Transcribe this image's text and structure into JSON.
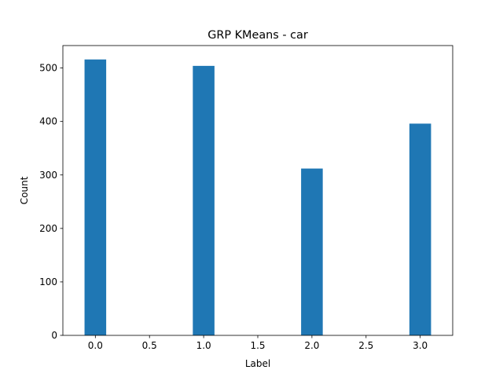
{
  "chart_data": {
    "type": "bar",
    "title": "GRP KMeans - car",
    "xlabel": "Label",
    "ylabel": "Count",
    "x": [
      0.0,
      1.0,
      2.0,
      3.0
    ],
    "values": [
      516,
      504,
      312,
      396
    ],
    "bar_color": "#1f77b4",
    "xlim": [
      -0.3,
      3.3
    ],
    "ylim": [
      0,
      542
    ],
    "xticks": [
      0.0,
      0.5,
      1.0,
      1.5,
      2.0,
      2.5,
      3.0
    ],
    "xtick_labels": [
      "0.0",
      "0.5",
      "1.0",
      "1.5",
      "2.0",
      "2.5",
      "3.0"
    ],
    "yticks": [
      0,
      100,
      200,
      300,
      400,
      500
    ],
    "ytick_labels": [
      "0",
      "100",
      "200",
      "300",
      "400",
      "500"
    ],
    "grid": false,
    "legend": "none"
  }
}
